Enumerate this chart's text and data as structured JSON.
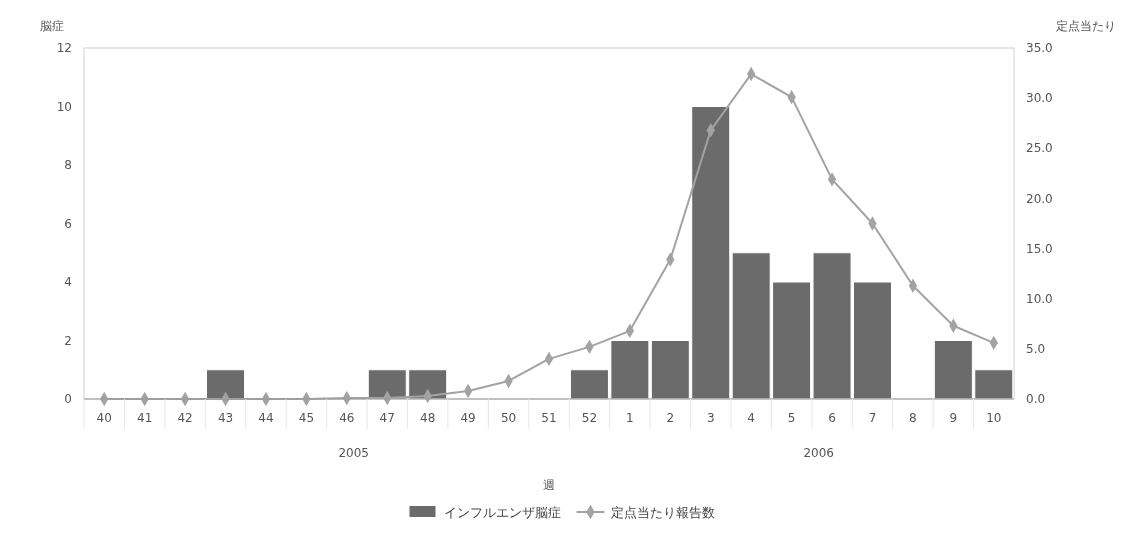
{
  "chart_data": {
    "type": "bar",
    "xlabel": "週",
    "ylabel": "脳症",
    "y2label": "定点当たり",
    "categories": [
      "40",
      "41",
      "42",
      "43",
      "44",
      "45",
      "46",
      "47",
      "48",
      "49",
      "50",
      "51",
      "52",
      "1",
      "2",
      "3",
      "4",
      "5",
      "6",
      "7",
      "8",
      "9",
      "10"
    ],
    "series": [
      {
        "name": "インフルエンザ脳症",
        "color": "#6b6b6b",
        "values": [
          0,
          0,
          0,
          1,
          0,
          0,
          0,
          1,
          1,
          0,
          0,
          0,
          1,
          2,
          2,
          10,
          5,
          4,
          5,
          4,
          0,
          2,
          1
        ]
      },
      {
        "name": "定点当たり報告数",
        "type": "line",
        "axis": "y2",
        "color": "#a3a3a3",
        "values": [
          0,
          0,
          0,
          0,
          0,
          0,
          0.1,
          0.1,
          0.3,
          0.8,
          1.8,
          4.0,
          5.2,
          6.8,
          13.9,
          26.8,
          32.4,
          30.1,
          21.9,
          17.5,
          11.3,
          7.3,
          5.6
        ]
      }
    ],
    "ylim": [
      0,
      12
    ],
    "yticks": [
      0,
      2,
      4,
      6,
      8,
      10,
      12
    ],
    "y2lim": [
      0,
      35
    ],
    "y2ticks": [
      {
        "value": 0,
        "label": "0.0"
      },
      {
        "value": 5,
        "label": "5.0"
      },
      {
        "value": 10,
        "label": "10.0"
      },
      {
        "value": 15,
        "label": "15.0"
      },
      {
        "value": 20,
        "label": "20.0"
      },
      {
        "value": 25,
        "label": "25.0"
      },
      {
        "value": 30,
        "label": "30.0"
      },
      {
        "value": 35,
        "label": "35.0"
      }
    ],
    "annotations": [
      "2005",
      "2006"
    ],
    "marker": "diamond",
    "legend": "bottom",
    "grid": false
  }
}
